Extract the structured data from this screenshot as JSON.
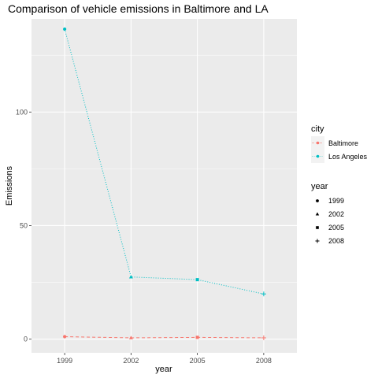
{
  "chart_data": {
    "type": "line",
    "title": "Comparison of vehicle emissions in Baltimore and LA",
    "xlabel": "year",
    "ylabel": "Emissions",
    "x": [
      1999,
      2002,
      2005,
      2008
    ],
    "x_tick_labels": [
      "1999",
      "2002",
      "2005",
      "2008"
    ],
    "y_ticks": [
      0,
      50,
      100
    ],
    "y_tick_labels": [
      "0",
      "50",
      "100"
    ],
    "xlim": [
      1997.5,
      2009.5
    ],
    "ylim": [
      -6,
      141
    ],
    "grid": true,
    "legend_position": "right",
    "series": [
      {
        "name": "Baltimore",
        "values": [
          1.1,
          0.6,
          0.8,
          0.6
        ],
        "color": "#F8766D",
        "linestyle": "dashed"
      },
      {
        "name": "Los Angeles",
        "values": [
          136.5,
          27.4,
          26.2,
          19.9
        ],
        "color": "#00BFC4",
        "linestyle": "dotted"
      }
    ],
    "legends": [
      {
        "title": "city",
        "entries": [
          "Baltimore",
          "Los Angeles"
        ]
      },
      {
        "title": "year",
        "entries": [
          "1999",
          "2002",
          "2005",
          "2008"
        ],
        "shapes": [
          "circle",
          "triangle",
          "square",
          "plus"
        ]
      }
    ]
  }
}
